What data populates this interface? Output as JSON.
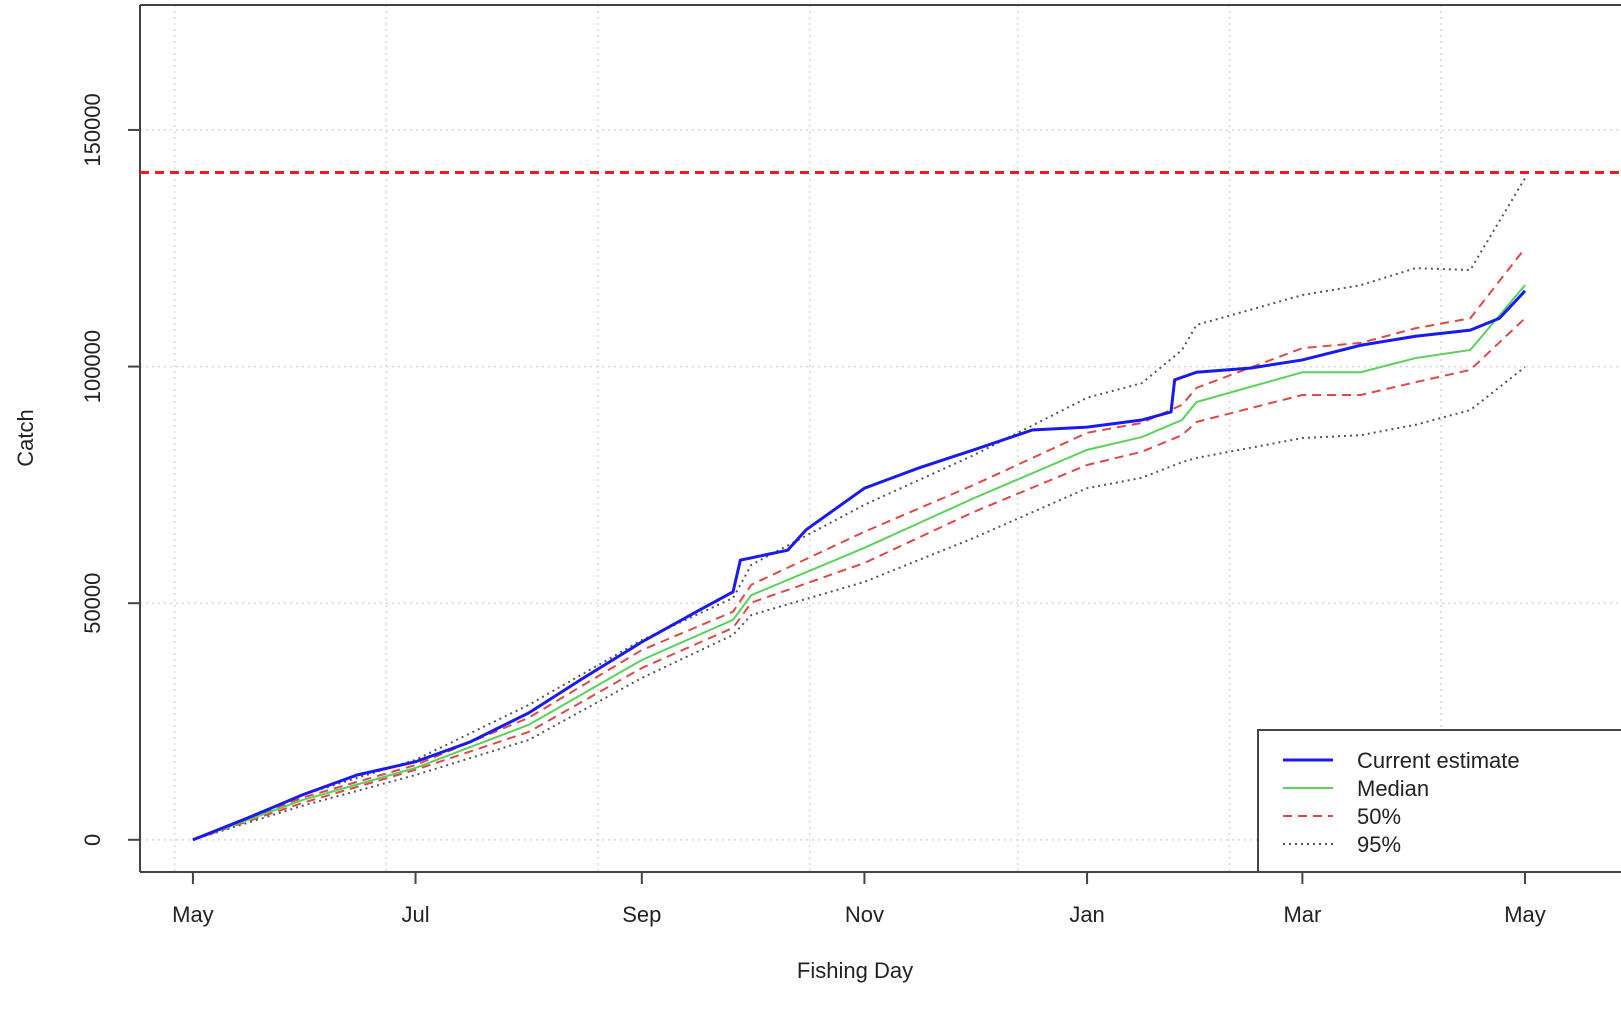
{
  "chart_data": {
    "type": "line",
    "x_label": "Fishing Day",
    "y_label": "Catch",
    "xlim": [
      -14.5,
      391.3
    ],
    "ylim": [
      -6800,
      176400
    ],
    "xticks": [
      {
        "value": 0,
        "label": "May"
      },
      {
        "value": 61,
        "label": "Jul"
      },
      {
        "value": 123,
        "label": "Sep"
      },
      {
        "value": 184,
        "label": "Nov"
      },
      {
        "value": 245,
        "label": "Jan"
      },
      {
        "value": 304,
        "label": "Mar"
      },
      {
        "value": 365,
        "label": "May"
      }
    ],
    "yticks": [
      0,
      50000,
      100000,
      150000
    ],
    "grid": true,
    "xgrid": [
      -5,
      53,
      111,
      169,
      226,
      284,
      342
    ],
    "reference_line": {
      "value": 141000,
      "color": "#e81e1e",
      "linestyle": "dashed"
    },
    "legend": "bottom-right",
    "series": [
      {
        "name": "Current estimate",
        "color": "#1a1aee",
        "linestyle": "solid",
        "linewidth": 3,
        "x": [
          0,
          15,
          30,
          45,
          61,
          76,
          92,
          107,
          123,
          138,
          148,
          150,
          163,
          168,
          184,
          199,
          214,
          230,
          245,
          260,
          268,
          269,
          275,
          290,
          304,
          320,
          335,
          350,
          358,
          365
        ],
        "values": [
          0,
          4600,
          9500,
          13700,
          16500,
          20700,
          26800,
          34200,
          41800,
          48200,
          52400,
          59100,
          61200,
          65500,
          74300,
          78600,
          82400,
          86600,
          87200,
          88700,
          90400,
          97200,
          98800,
          99700,
          101400,
          104500,
          106400,
          107700,
          110200,
          116000
        ]
      },
      {
        "name": "Median",
        "color": "#5ad25a",
        "linestyle": "solid",
        "linewidth": 2,
        "x": [
          0,
          30,
          61,
          92,
          123,
          148,
          153,
          184,
          214,
          245,
          260,
          271,
          275,
          304,
          320,
          335,
          350,
          365
        ],
        "values": [
          0,
          8400,
          15200,
          24300,
          38000,
          46500,
          51700,
          61700,
          72200,
          82400,
          85100,
          88700,
          92500,
          98800,
          98800,
          101800,
          103500,
          117200
        ]
      },
      {
        "name": "50%",
        "color": "#e04848",
        "linestyle": "dashed",
        "linewidth": 2,
        "x": [
          0,
          30,
          61,
          92,
          123,
          148,
          153,
          184,
          214,
          245,
          260,
          271,
          275,
          304,
          320,
          335,
          350,
          365
        ],
        "upper": [
          0,
          8900,
          15800,
          25800,
          40100,
          48200,
          53900,
          65100,
          75000,
          86000,
          88100,
          91900,
          95500,
          103900,
          105000,
          108100,
          110200,
          125000
        ],
        "lower": [
          0,
          7800,
          14800,
          22800,
          36300,
          44800,
          50100,
          58500,
          69300,
          79200,
          82000,
          85500,
          88300,
          94000,
          94000,
          96700,
          99300,
          110200
        ]
      },
      {
        "name": "95%",
        "color": "#555555",
        "linestyle": "dotted",
        "linewidth": 2,
        "x": [
          0,
          30,
          61,
          92,
          123,
          148,
          153,
          184,
          214,
          245,
          260,
          271,
          275,
          304,
          320,
          335,
          350,
          365
        ],
        "upper": [
          0,
          9500,
          16900,
          28500,
          42200,
          51100,
          58100,
          70800,
          81300,
          93400,
          96500,
          103500,
          108800,
          115100,
          117200,
          120800,
          120400,
          139800
        ],
        "lower": [
          0,
          7200,
          13700,
          21100,
          34200,
          43300,
          47500,
          54500,
          63800,
          74300,
          76500,
          79800,
          80700,
          84900,
          85500,
          87700,
          90800,
          99900
        ]
      }
    ]
  }
}
